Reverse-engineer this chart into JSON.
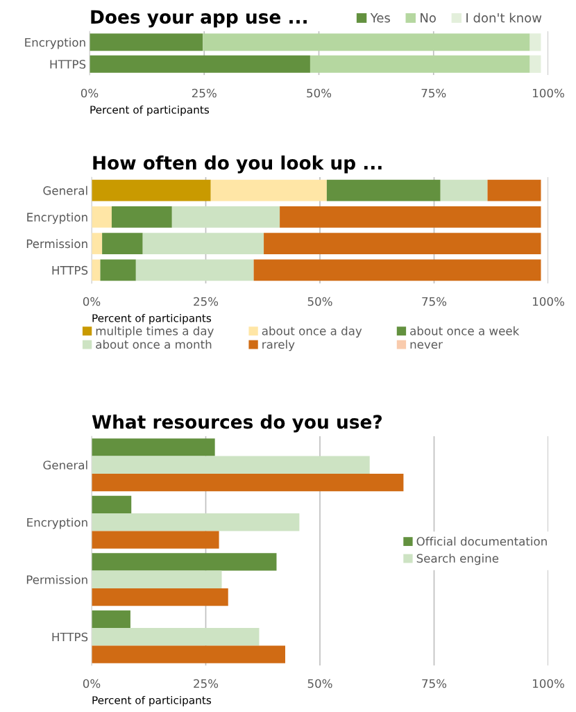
{
  "chart_data": [
    {
      "type": "bar",
      "orientation": "horizontal",
      "stacked": true,
      "title": "Does your app use ...",
      "xlabel": "Percent of participants",
      "categories": [
        "Encryption",
        "HTTPS"
      ],
      "xlim": [
        0,
        100
      ],
      "xticks": [
        {
          "value": 0,
          "label": "0%"
        },
        {
          "value": 25,
          "label": "25%"
        },
        {
          "value": 50,
          "label": "50%"
        },
        {
          "value": 75,
          "label": "75%"
        },
        {
          "value": 100,
          "label": "100%"
        }
      ],
      "grid": "x",
      "legend": "top right",
      "series": [
        {
          "name": "Yes",
          "color": "#63913f",
          "values": [
            24.7,
            48.1
          ]
        },
        {
          "name": "No",
          "color": "#b5d7a0",
          "values": [
            71.3,
            47.9
          ]
        },
        {
          "name": "I don't know",
          "color": "#e3efdb",
          "values": [
            2.4,
            2.4
          ]
        }
      ]
    },
    {
      "type": "bar",
      "orientation": "horizontal",
      "stacked": true,
      "title": "How often do you look up ...",
      "xlabel": "Percent of participants",
      "categories": [
        "General",
        "Encryption",
        "Permission",
        "HTTPS"
      ],
      "xlim": [
        0,
        100
      ],
      "xticks": [
        {
          "value": 0,
          "label": "0%"
        },
        {
          "value": 25,
          "label": "25%"
        },
        {
          "value": 50,
          "label": "50%"
        },
        {
          "value": 75,
          "label": "75%"
        },
        {
          "value": 100,
          "label": "100%"
        }
      ],
      "grid": "x",
      "legend": "bottom",
      "series": [
        {
          "name": "multiple times a day",
          "color": "#c99a00",
          "values": [
            26.1,
            0,
            0,
            0
          ]
        },
        {
          "name": "about once a day",
          "color": "#ffe6a6",
          "values": [
            25.4,
            4.4,
            2.3,
            1.9
          ]
        },
        {
          "name": "about once a week",
          "color": "#63913f",
          "values": [
            24.9,
            13.2,
            8.9,
            7.8
          ]
        },
        {
          "name": "about once a month",
          "color": "#cde3c3",
          "values": [
            10.3,
            23.6,
            26.5,
            25.8
          ]
        },
        {
          "name": "rarely",
          "color": "#d06b14",
          "values": [
            11.7,
            57.2,
            60.7,
            62.9
          ]
        },
        {
          "name": "never",
          "color": "#f9cbad",
          "values": [
            0,
            0,
            0,
            0
          ]
        }
      ]
    },
    {
      "type": "bar",
      "orientation": "horizontal",
      "title": "What resources do you use?",
      "xlabel": "Percent of participants",
      "categories": [
        "General",
        "Encryption",
        "Permission",
        "HTTPS"
      ],
      "xlim": [
        0,
        100
      ],
      "xticks": [
        {
          "value": 0,
          "label": "0%"
        },
        {
          "value": 25,
          "label": "25%"
        },
        {
          "value": 50,
          "label": "50%"
        },
        {
          "value": 75,
          "label": "75%"
        },
        {
          "value": 100,
          "label": "100%"
        }
      ],
      "grid": "x",
      "legend": "right",
      "series": [
        {
          "name": "Official documentation",
          "color": "#63913f",
          "values": [
            27.0,
            8.7,
            40.5,
            8.5
          ]
        },
        {
          "name": "Search engine",
          "color": "#cde3c3",
          "values": [
            60.9,
            45.5,
            28.5,
            36.7
          ]
        },
        {
          "color": "#d06b14",
          "values": [
            68.3,
            27.9,
            29.9,
            42.4
          ]
        }
      ]
    }
  ]
}
